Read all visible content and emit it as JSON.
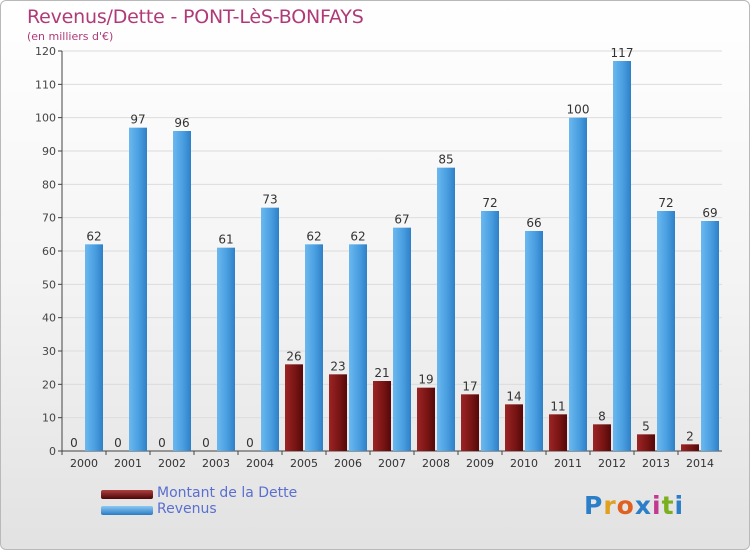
{
  "header": {
    "title": "Revenus/Dette - PONT-LèS-BONFAYS",
    "subtitle": "(en milliers d'€)"
  },
  "chart_data": {
    "type": "bar",
    "categories": [
      "2000",
      "2001",
      "2002",
      "2003",
      "2004",
      "2005",
      "2006",
      "2007",
      "2008",
      "2009",
      "2010",
      "2011",
      "2012",
      "2013",
      "2014"
    ],
    "series": [
      {
        "name": "Montant de la Dette",
        "color": "#7a1515",
        "values": [
          0,
          0,
          0,
          0,
          0,
          26,
          23,
          21,
          19,
          17,
          14,
          11,
          8,
          5,
          2
        ]
      },
      {
        "name": "Revenus",
        "color": "#4a9fe0",
        "values": [
          62,
          97,
          96,
          61,
          73,
          62,
          62,
          67,
          85,
          72,
          66,
          100,
          117,
          72,
          69
        ]
      }
    ],
    "ylim": [
      0,
      120
    ],
    "yticks": [
      0,
      10,
      20,
      30,
      40,
      50,
      60,
      70,
      80,
      90,
      100,
      110,
      120
    ],
    "grid": true,
    "legend_position": "bottom-left"
  },
  "legend": {
    "items": [
      {
        "label": "Montant de la Dette",
        "color": "#7a1515"
      },
      {
        "label": "Revenus",
        "color": "#4a9fe0"
      }
    ]
  },
  "logo": {
    "letters": [
      "P",
      "r",
      "o",
      "x",
      "i",
      "t",
      "i"
    ],
    "colors": [
      "#2a7fc8",
      "#e0a020",
      "#e06020",
      "#2a7fc8",
      "#c03a90",
      "#7ab020",
      "#2a7fc8"
    ]
  }
}
